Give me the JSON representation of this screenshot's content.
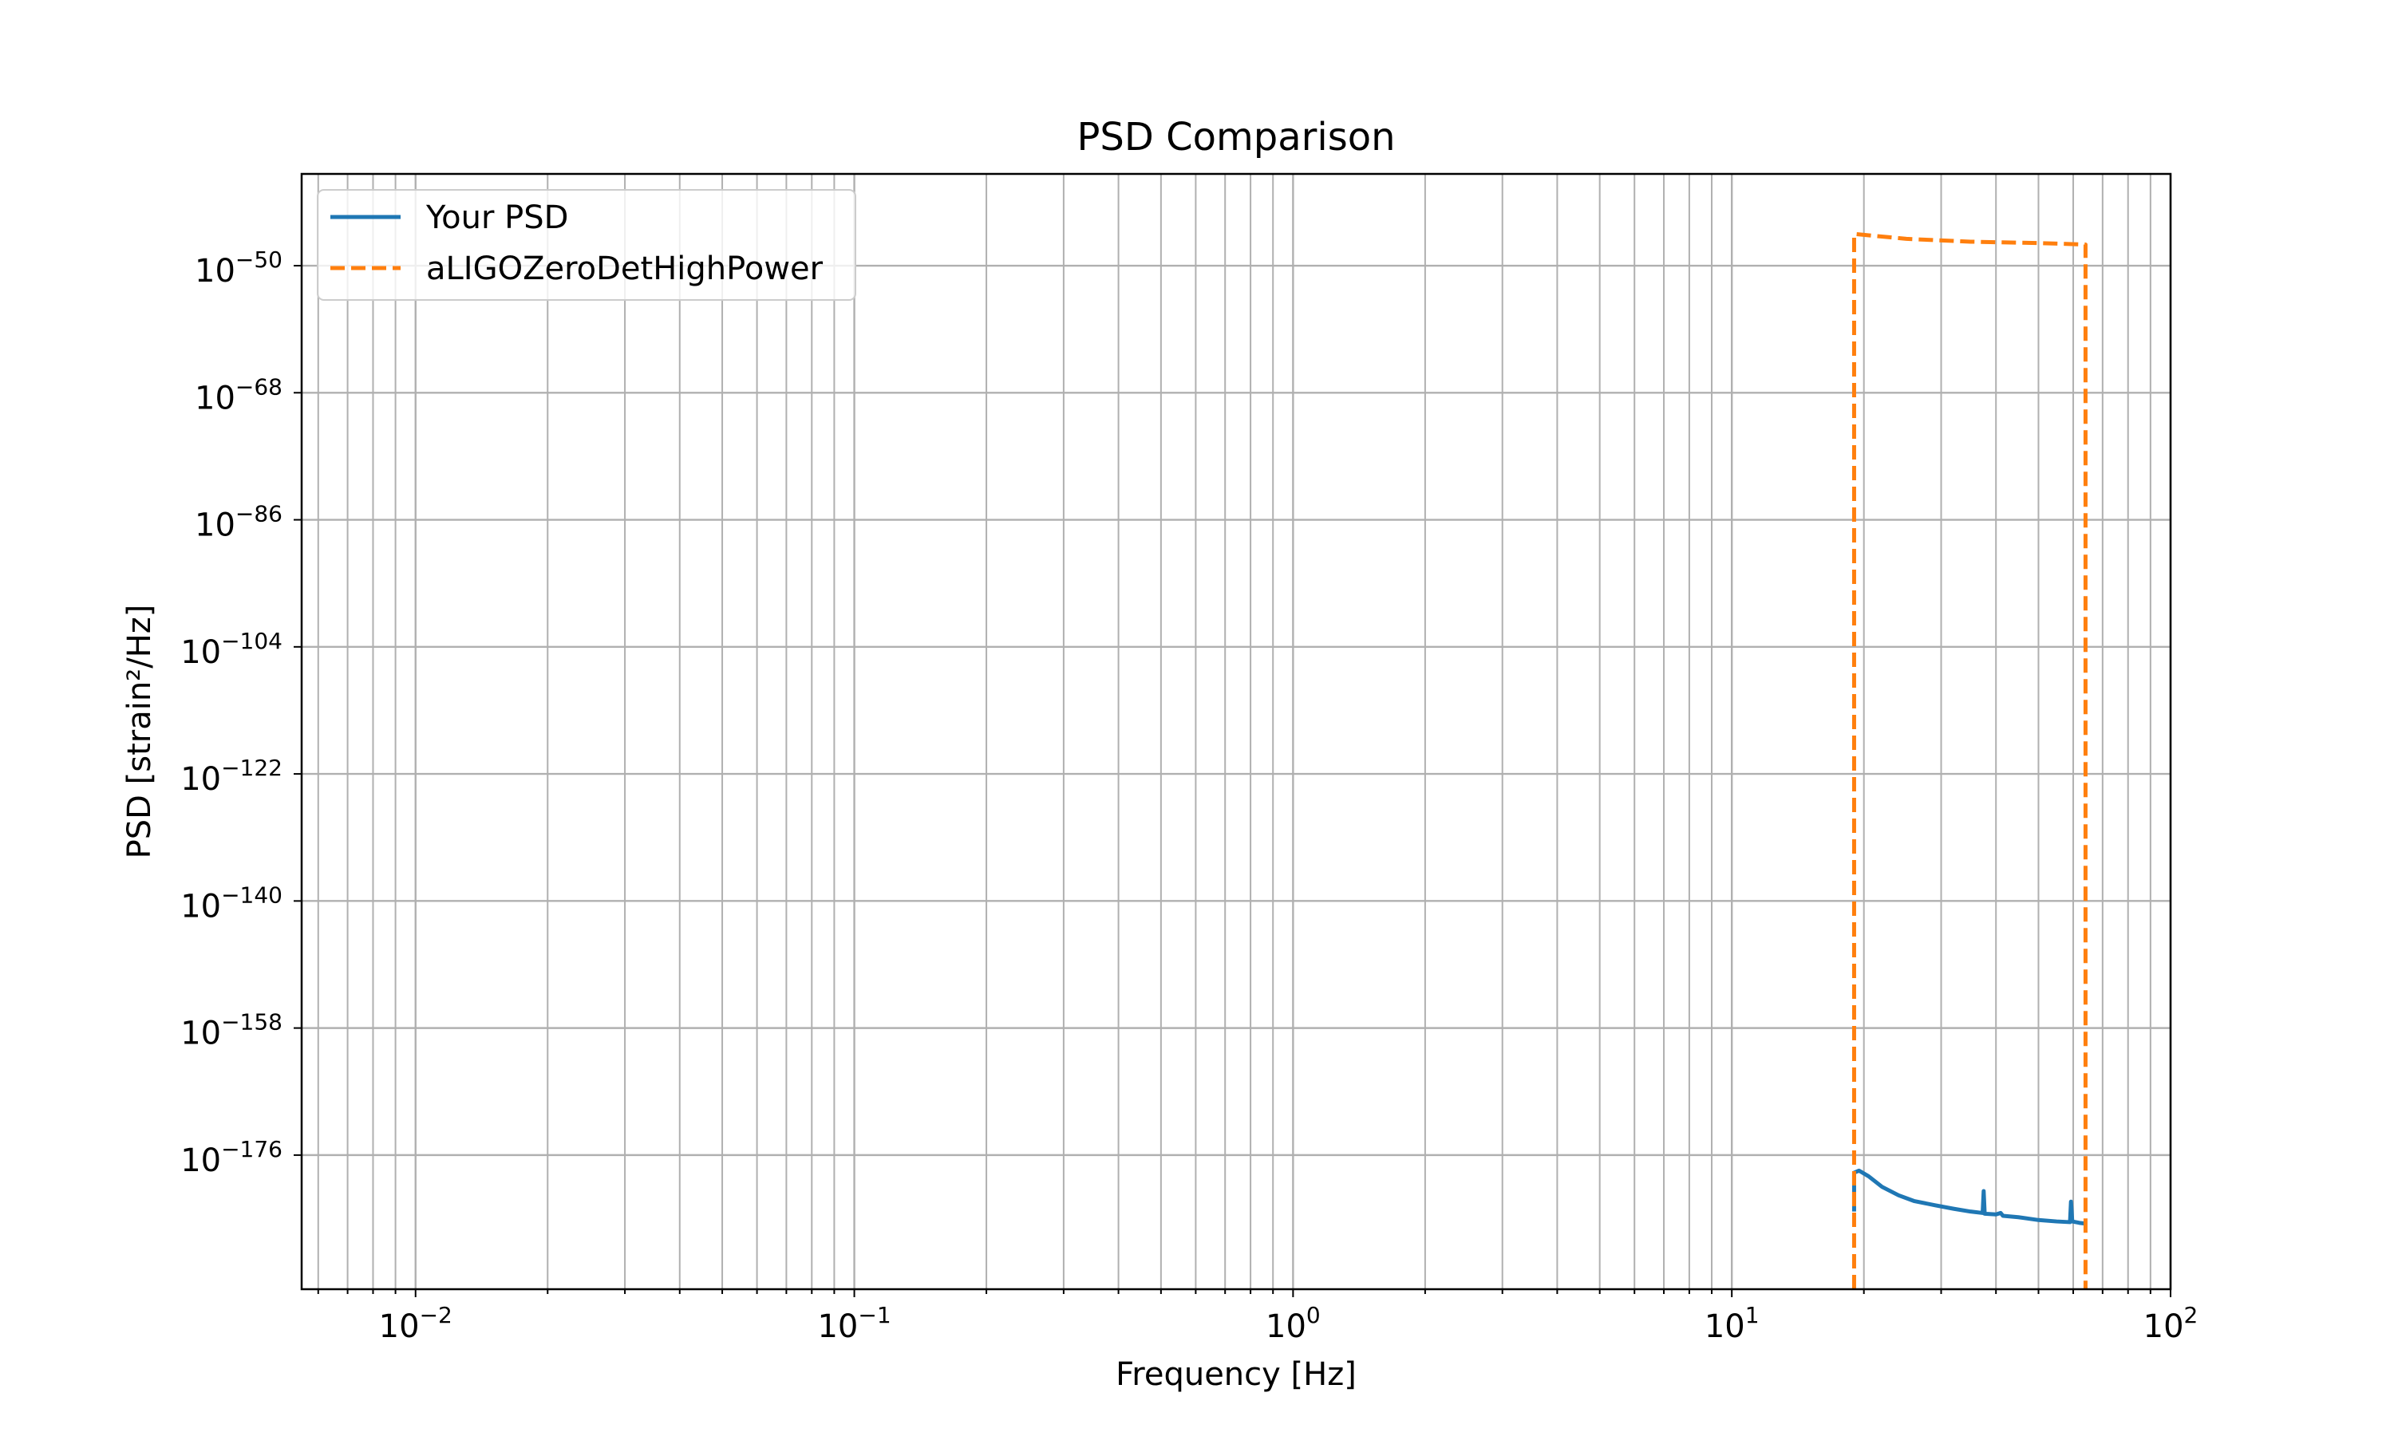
{
  "chart_data": {
    "type": "line",
    "title": "PSD Comparison",
    "xlabel": "Frequency [Hz]",
    "ylabel": "PSD [strain²/Hz]",
    "xscale": "log",
    "yscale": "log",
    "xlim": [
      0.0055,
      100
    ],
    "ylim": [
      1e-195,
      1e-37
    ],
    "grid": "on (major and minor)",
    "legend_position": "upper-left",
    "x_ticks": [
      {
        "value": 0.01,
        "base": "10",
        "exp": "−2"
      },
      {
        "value": 0.1,
        "base": "10",
        "exp": "−1"
      },
      {
        "value": 1,
        "base": "10",
        "exp": "0"
      },
      {
        "value": 10,
        "base": "10",
        "exp": "1"
      },
      {
        "value": 100,
        "base": "10",
        "exp": "2"
      }
    ],
    "y_ticks": [
      {
        "value": -50,
        "base": "10",
        "exp": "−50"
      },
      {
        "value": -68,
        "base": "10",
        "exp": "−68"
      },
      {
        "value": -86,
        "base": "10",
        "exp": "−86"
      },
      {
        "value": -104,
        "base": "10",
        "exp": "−104"
      },
      {
        "value": -122,
        "base": "10",
        "exp": "−122"
      },
      {
        "value": -140,
        "base": "10",
        "exp": "−140"
      },
      {
        "value": -158,
        "base": "10",
        "exp": "−158"
      },
      {
        "value": -176,
        "base": "10",
        "exp": "−176"
      }
    ],
    "series": [
      {
        "name": "Your PSD",
        "color": "#1f77b4",
        "dash": "solid",
        "points": [
          [
            19.0,
            -184
          ],
          [
            19.0,
            -181
          ],
          [
            19.0,
            -178.5
          ],
          [
            19.5,
            -178.2
          ],
          [
            20.5,
            -179.0
          ],
          [
            22.0,
            -180.5
          ],
          [
            24.0,
            -181.7
          ],
          [
            26.0,
            -182.5
          ],
          [
            29.0,
            -183.1
          ],
          [
            32.0,
            -183.6
          ],
          [
            35.0,
            -184.0
          ],
          [
            37.3,
            -184.2
          ],
          [
            37.5,
            -181.1
          ],
          [
            37.7,
            -184.3
          ],
          [
            40.0,
            -184.4
          ],
          [
            41.0,
            -184.2
          ],
          [
            41.5,
            -184.6
          ],
          [
            45.0,
            -184.8
          ],
          [
            50.0,
            -185.2
          ],
          [
            55.0,
            -185.4
          ],
          [
            59.0,
            -185.5
          ],
          [
            59.3,
            -182.6
          ],
          [
            59.7,
            -185.4
          ],
          [
            62.0,
            -185.6
          ],
          [
            64.0,
            -185.7
          ]
        ]
      },
      {
        "name": "aLIGOZeroDetHighPower",
        "color": "#ff7f0e",
        "dash": "dashed",
        "points": [
          [
            19.0,
            -195
          ],
          [
            19.0,
            -45.5
          ],
          [
            25.0,
            -46.2
          ],
          [
            35.0,
            -46.6
          ],
          [
            50.0,
            -46.8
          ],
          [
            64.0,
            -47.0
          ],
          [
            64.0,
            -195
          ]
        ]
      }
    ]
  }
}
